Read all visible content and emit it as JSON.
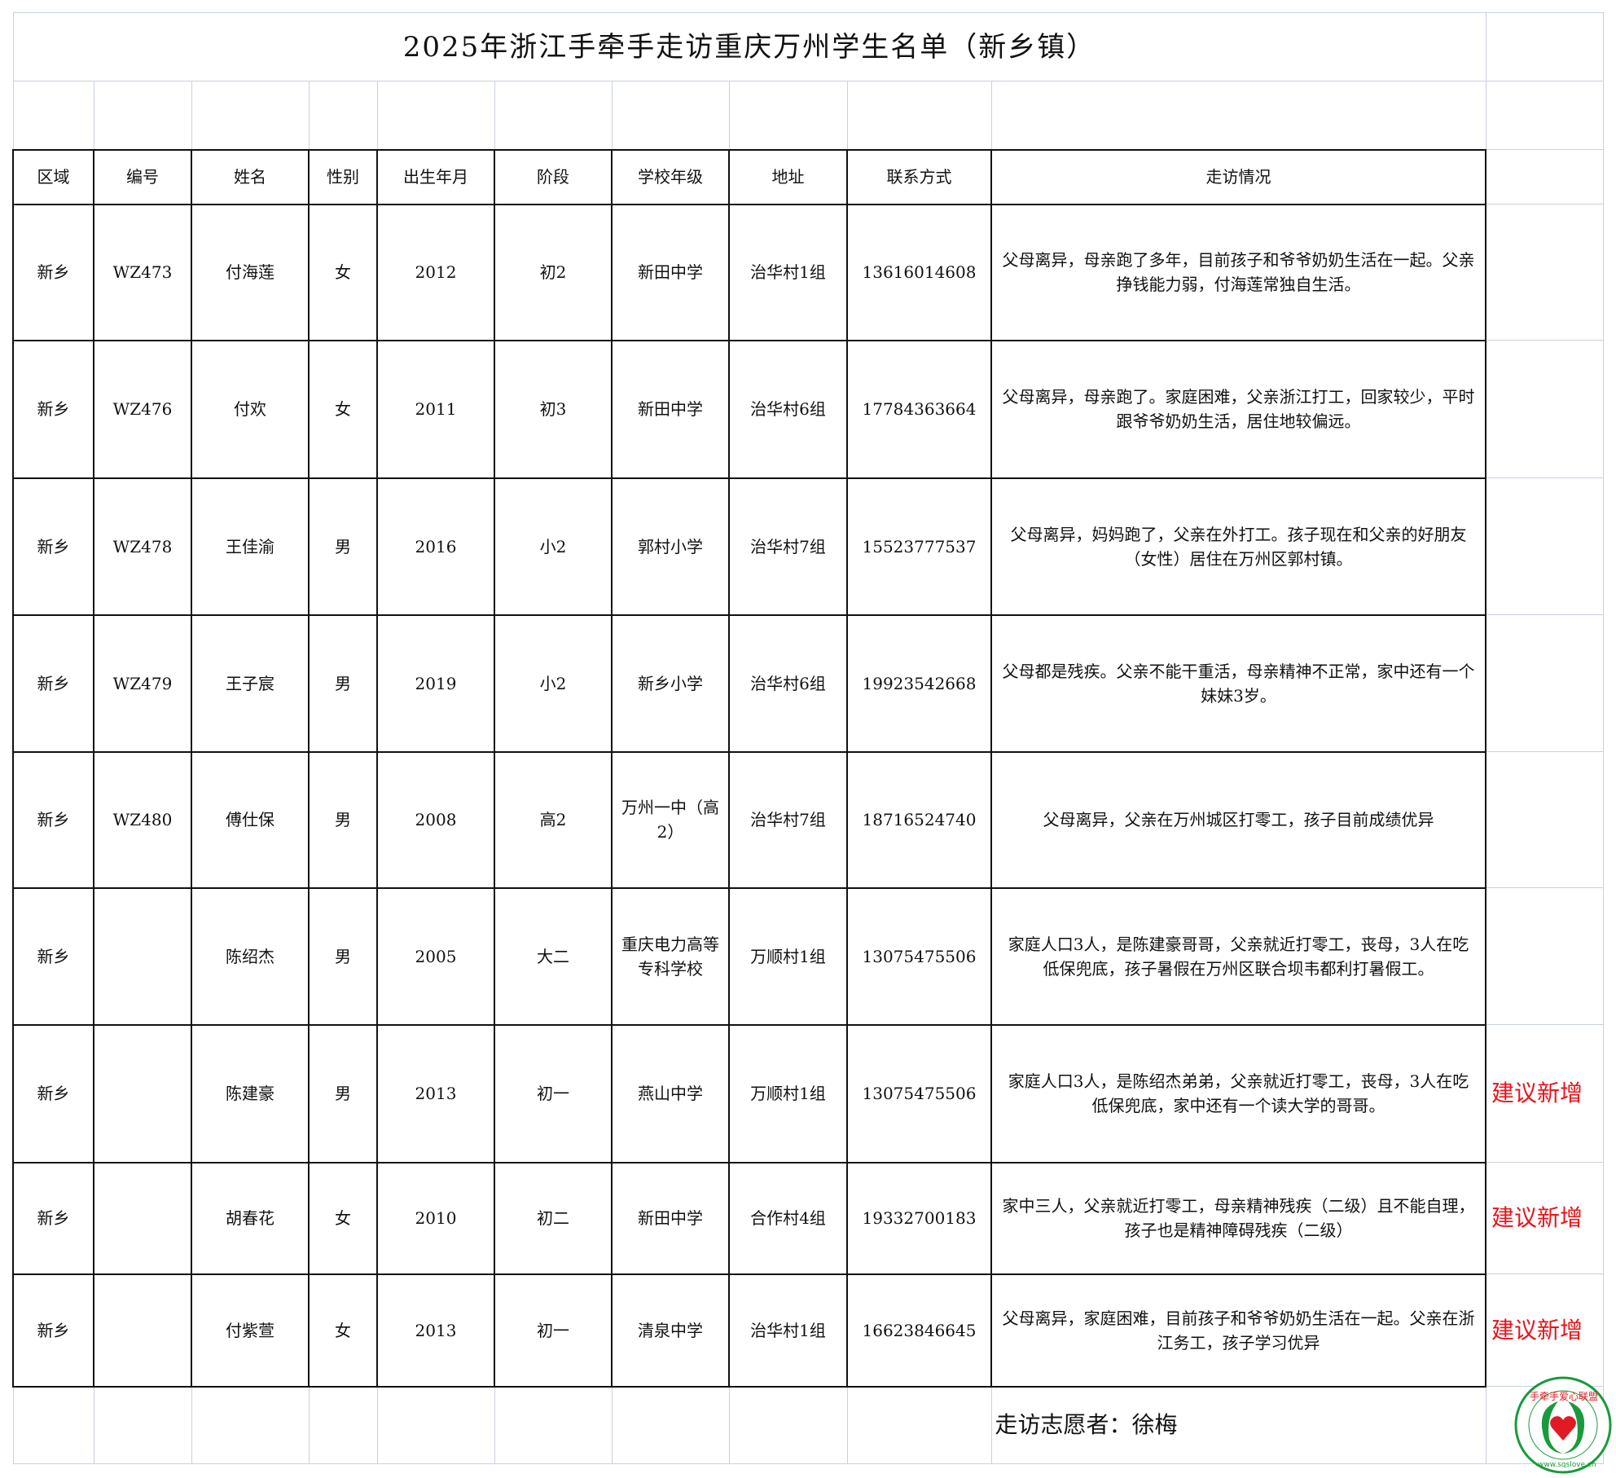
{
  "title": "2025年浙江手牵手走访重庆万州学生名单（新乡镇）",
  "headers": [
    "区域",
    "编号",
    "姓名",
    "性别",
    "出生年月",
    "阶段",
    "学校年级",
    "地址",
    "联系方式",
    "走访情况"
  ],
  "rows": [
    {
      "region": "新乡",
      "id": "WZ473",
      "name": "付海莲",
      "gender": "女",
      "birth": "2012",
      "stage": "初2",
      "school": "新田中学",
      "address": "治华村1组",
      "phone": "13616014608",
      "visit": "父母离异，母亲跑了多年，目前孩子和爷爷奶奶生活在一起。父亲挣钱能力弱，付海莲常独自生活。",
      "note": ""
    },
    {
      "region": "新乡",
      "id": "WZ476",
      "name": "付欢",
      "gender": "女",
      "birth": "2011",
      "stage": "初3",
      "school": "新田中学",
      "address": "治华村6组",
      "phone": "17784363664",
      "visit": "父母离异，母亲跑了。家庭困难，父亲浙江打工，回家较少，平时跟爷爷奶奶生活，居住地较偏远。",
      "note": ""
    },
    {
      "region": "新乡",
      "id": "WZ478",
      "name": "王佳渝",
      "gender": "男",
      "birth": "2016",
      "stage": "小2",
      "school": "郭村小学",
      "address": "治华村7组",
      "phone": "15523777537",
      "visit": "父母离异，妈妈跑了，父亲在外打工。孩子现在和父亲的好朋友（女性）居住在万州区郭村镇。",
      "note": ""
    },
    {
      "region": "新乡",
      "id": "WZ479",
      "name": "王子宸",
      "gender": "男",
      "birth": "2019",
      "stage": "小2",
      "school": "新乡小学",
      "address": "治华村6组",
      "phone": "19923542668",
      "visit": "父母都是残疾。父亲不能干重活，母亲精神不正常，家中还有一个妹妹3岁。",
      "note": ""
    },
    {
      "region": "新乡",
      "id": "WZ480",
      "name": "傅仕保",
      "gender": "男",
      "birth": "2008",
      "stage": "高2",
      "school": "万州一中（高2）",
      "address": "治华村7组",
      "phone": "18716524740",
      "visit": "父母离异，父亲在万州城区打零工，孩子目前成绩优异",
      "note": ""
    },
    {
      "region": "新乡",
      "id": "",
      "name": "陈绍杰",
      "gender": "男",
      "birth": "2005",
      "stage": "大二",
      "school": "重庆电力高等专科学校",
      "address": "万顺村1组",
      "phone": "13075475506",
      "visit": "家庭人口3人，是陈建豪哥哥，父亲就近打零工，丧母，3人在吃低保兜底，孩子暑假在万州区联合坝韦都利打暑假工。",
      "note": ""
    },
    {
      "region": "新乡",
      "id": "",
      "name": "陈建豪",
      "gender": "男",
      "birth": "2013",
      "stage": "初一",
      "school": "燕山中学",
      "address": "万顺村1组",
      "phone": "13075475506",
      "visit": "家庭人口3人，是陈绍杰弟弟，父亲就近打零工，丧母，3人在吃低保兜底，家中还有一个读大学的哥哥。",
      "note": "建议新增"
    },
    {
      "region": "新乡",
      "id": "",
      "name": "胡春花",
      "gender": "女",
      "birth": "2010",
      "stage": "初二",
      "school": "新田中学",
      "address": "合作村4组",
      "phone": "19332700183",
      "visit": "家中三人，父亲就近打零工，母亲精神残疾（二级）且不能自理，孩子也是精神障碍残疾（二级）",
      "note": "建议新增"
    },
    {
      "region": "新乡",
      "id": "",
      "name": "付紫萱",
      "gender": "女",
      "birth": "2013",
      "stage": "初一",
      "school": "清泉中学",
      "address": "治华村1组",
      "phone": "16623846645",
      "visit": "父母离异，家庭困难，目前孩子和爷爷奶奶生活在一起。父亲在浙江务工，孩子学习优异",
      "note": "建议新增"
    }
  ],
  "footer": {
    "volunteer": "走访志愿者：徐梅"
  },
  "logo": {
    "text": "手牵手爱心联盟",
    "url": "www.sqslove.cn",
    "ring_color": "#1a9a3c",
    "heart_color": "#e01b24"
  },
  "colors": {
    "suggestion": "#e8141b"
  }
}
